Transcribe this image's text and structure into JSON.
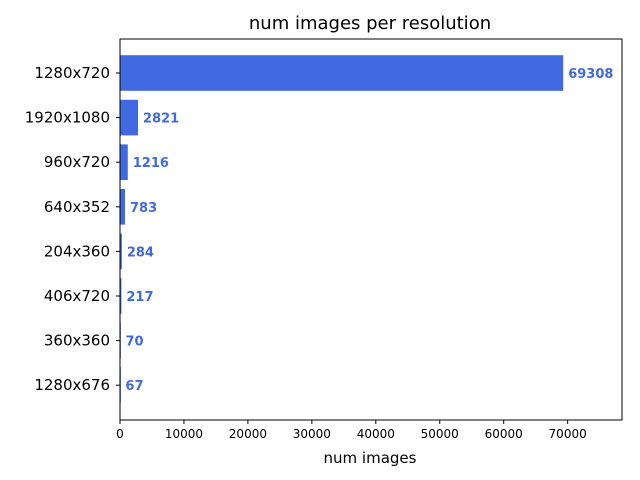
{
  "chart_data": {
    "type": "bar",
    "orientation": "horizontal",
    "title": "num images per resolution",
    "xlabel": "num images",
    "ylabel": "",
    "categories": [
      "1280x720",
      "1920x1080",
      "960x720",
      "640x352",
      "204x360",
      "406x720",
      "360x360",
      "1280x676"
    ],
    "values": [
      69308,
      2821,
      1216,
      783,
      284,
      217,
      70,
      67
    ],
    "data_labels": [
      "69308",
      "2821",
      "1216",
      "783",
      "284",
      "217",
      "70",
      "67"
    ],
    "xlim": [
      0,
      78500
    ],
    "xticks": [
      0,
      10000,
      20000,
      30000,
      40000,
      50000,
      60000,
      70000
    ],
    "grid": false,
    "legend": "none",
    "bar_color": "#4169e1",
    "label_color": "#4169e1"
  }
}
